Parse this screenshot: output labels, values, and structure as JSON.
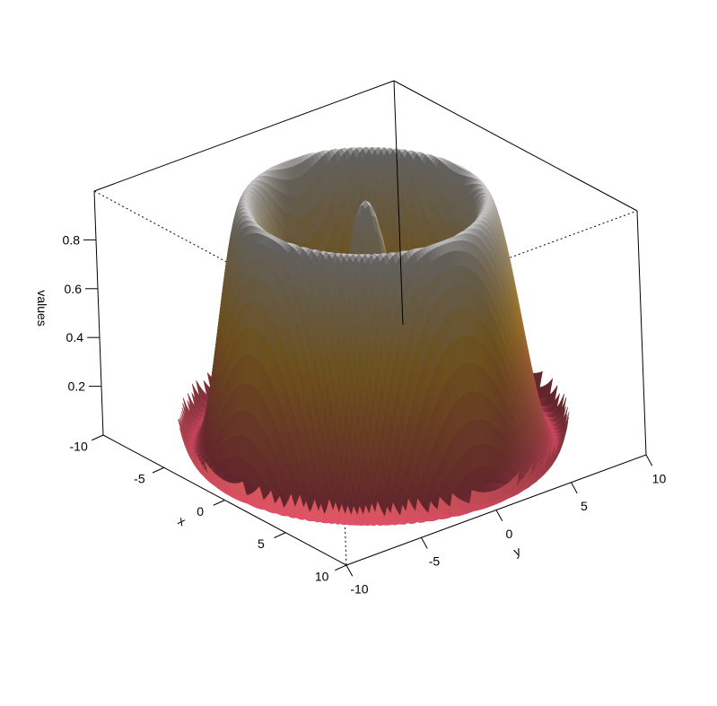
{
  "chart_data": {
    "type": "surface3d",
    "title": "",
    "xlabel": "x",
    "ylabel": "y",
    "zlabel": "values",
    "xlim": [
      -10,
      10
    ],
    "ylim": [
      -10,
      10
    ],
    "zlim": [
      0,
      1
    ],
    "x_ticks": [
      "-10",
      "-5",
      "0",
      "5",
      "10"
    ],
    "y_ticks": [
      "-10",
      "-5",
      "0",
      "5",
      "10"
    ],
    "z_ticks": [
      "0.2",
      "0.4",
      "0.6",
      "0.8"
    ],
    "surface": "values = (1 + cos(sqrt(x^2 + y^2))) / 2, shown for sqrt(x^2 + y^2) <= 10",
    "domain_radius": 10,
    "color_low": "#d94a66",
    "color_mid": "#f0b240",
    "color_high": "#d9d9d9",
    "box": "full, back edges dotted"
  }
}
